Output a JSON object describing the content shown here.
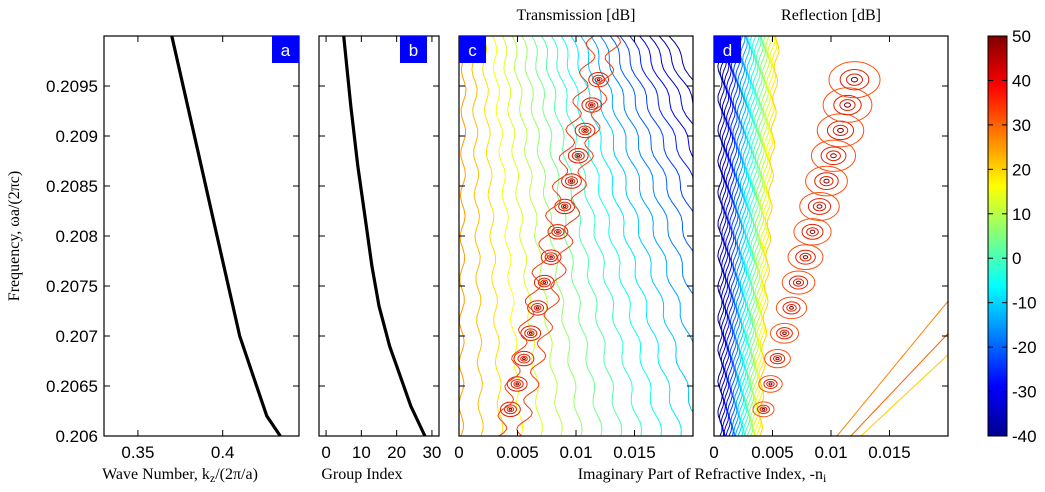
{
  "figure": {
    "ylabel": "Frequency, ωa/(2πc)",
    "yticks": [
      "0.206",
      "0.2065",
      "0.207",
      "0.2075",
      "0.208",
      "0.2085",
      "0.209",
      "0.2095"
    ],
    "shared_xlabel": "Imaginary Part of Refractive Index, -n",
    "shared_xlabel_sub": "i"
  },
  "colors": {
    "panel_label_bg": "#0000ff",
    "panel_label_fg": "#ffffff",
    "curve": "#000000"
  },
  "chart_data": [
    {
      "type": "line",
      "panel": "a",
      "xlabel": "Wave Number, k",
      "xlabel_sub": "z",
      "xlabel_tail": "/(2π/a)",
      "xlim": [
        0.33,
        0.445
      ],
      "ylim": [
        0.206,
        0.21
      ],
      "xticks": [
        "0.35",
        "0.4"
      ],
      "xtick_values": [
        0.35,
        0.4
      ],
      "x": [
        0.37,
        0.378,
        0.386,
        0.394,
        0.402,
        0.41,
        0.418,
        0.426,
        0.434
      ],
      "y": [
        0.21,
        0.2094,
        0.2088,
        0.2082,
        0.2076,
        0.207,
        0.2066,
        0.2062,
        0.206
      ]
    },
    {
      "type": "line",
      "panel": "b",
      "xlabel": "Group Index",
      "xlim": [
        -2,
        32
      ],
      "ylim": [
        0.206,
        0.21
      ],
      "xticks": [
        "0",
        "10",
        "20",
        "30"
      ],
      "xtick_values": [
        0,
        10,
        20,
        30
      ],
      "x": [
        5,
        7,
        9,
        11,
        13,
        15,
        18,
        21,
        24,
        28
      ],
      "y": [
        0.21,
        0.2093,
        0.2087,
        0.2082,
        0.2077,
        0.2073,
        0.2069,
        0.2066,
        0.2063,
        0.206
      ]
    },
    {
      "type": "heatmap",
      "panel": "c",
      "title": "Transmission [dB]",
      "xlim": [
        0,
        0.02
      ],
      "ylim": [
        0.206,
        0.21
      ],
      "xticks": [
        "0",
        "0.005",
        "0.01",
        "0.015"
      ],
      "xtick_values": [
        0,
        0.005,
        0.01,
        0.015
      ]
    },
    {
      "type": "heatmap",
      "panel": "d",
      "title": "Reflection [dB]",
      "xlim": [
        0,
        0.02
      ],
      "ylim": [
        0.206,
        0.21
      ],
      "xticks": [
        "0",
        "0.005",
        "0.01",
        "0.015"
      ],
      "xtick_values": [
        0,
        0.005,
        0.01,
        0.015
      ]
    }
  ],
  "colorbar": {
    "ticks": [
      "50",
      "40",
      "30",
      "20",
      "10",
      "0",
      "-10",
      "-20",
      "-30",
      "-40"
    ],
    "range": [
      -40,
      50
    ],
    "colormap": "jet"
  }
}
